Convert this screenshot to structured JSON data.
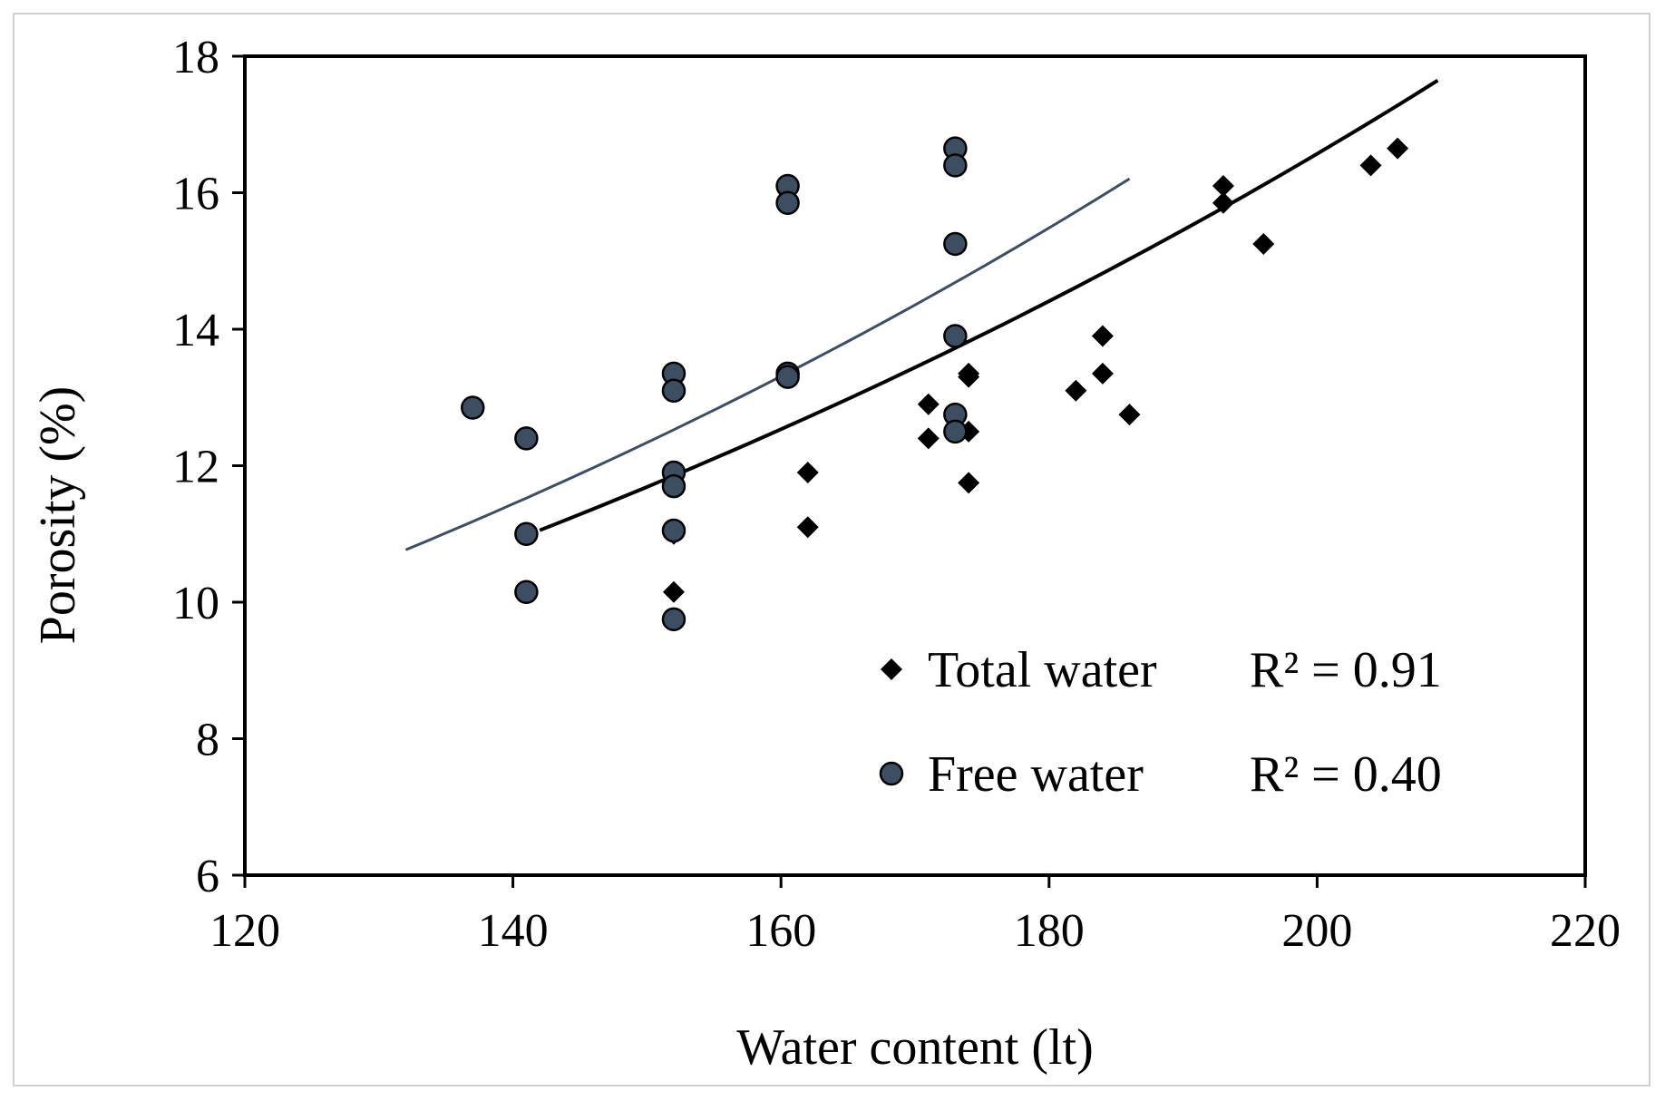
{
  "chart_data": {
    "type": "scatter",
    "title": "",
    "xlabel": "Water content (lt)",
    "ylabel": "Porosity (%)",
    "xlim": [
      120,
      220
    ],
    "ylim": [
      6,
      18
    ],
    "xticks": [
      120,
      140,
      160,
      180,
      200,
      220
    ],
    "yticks": [
      6,
      8,
      10,
      12,
      14,
      16,
      18
    ],
    "grid": false,
    "legend_position": "bottom-right",
    "series": [
      {
        "name": "Total water",
        "marker": "diamond",
        "color": "#000000",
        "points": [
          [
            152,
            11.0
          ],
          [
            152,
            10.15
          ],
          [
            162,
            11.9
          ],
          [
            162,
            11.1
          ],
          [
            171,
            12.9
          ],
          [
            171,
            12.4
          ],
          [
            174,
            13.3
          ],
          [
            174,
            13.35
          ],
          [
            174,
            12.5
          ],
          [
            174,
            11.75
          ],
          [
            182,
            13.1
          ],
          [
            184,
            13.9
          ],
          [
            184,
            13.35
          ],
          [
            186,
            12.75
          ],
          [
            193,
            16.1
          ],
          [
            193,
            15.85
          ],
          [
            196,
            15.25
          ],
          [
            204,
            16.4
          ],
          [
            206,
            16.65
          ]
        ],
        "trendline": {
          "x_range": [
            142,
            209
          ],
          "coeffs": [
            4.1026,
            0.00698
          ],
          "r2_label": "R² = 0.91"
        }
      },
      {
        "name": "Free water",
        "marker": "circle",
        "color": "#3d4e63",
        "points": [
          [
            137,
            12.85
          ],
          [
            141,
            12.4
          ],
          [
            141,
            11.0
          ],
          [
            141,
            10.15
          ],
          [
            152,
            13.35
          ],
          [
            152,
            13.1
          ],
          [
            152,
            11.9
          ],
          [
            152,
            11.7
          ],
          [
            152,
            11.05
          ],
          [
            152,
            9.75
          ],
          [
            160.5,
            16.1
          ],
          [
            160.5,
            15.85
          ],
          [
            160.5,
            13.35
          ],
          [
            160.5,
            13.3
          ],
          [
            173,
            16.65
          ],
          [
            173,
            16.4
          ],
          [
            173,
            15.25
          ],
          [
            173,
            13.9
          ],
          [
            173,
            12.75
          ],
          [
            173,
            12.5
          ]
        ],
        "trendline": {
          "x_range": [
            132,
            186
          ],
          "coeffs": [
            3.964,
            0.00757
          ],
          "r2_label": "R² = 0.40"
        }
      }
    ]
  }
}
